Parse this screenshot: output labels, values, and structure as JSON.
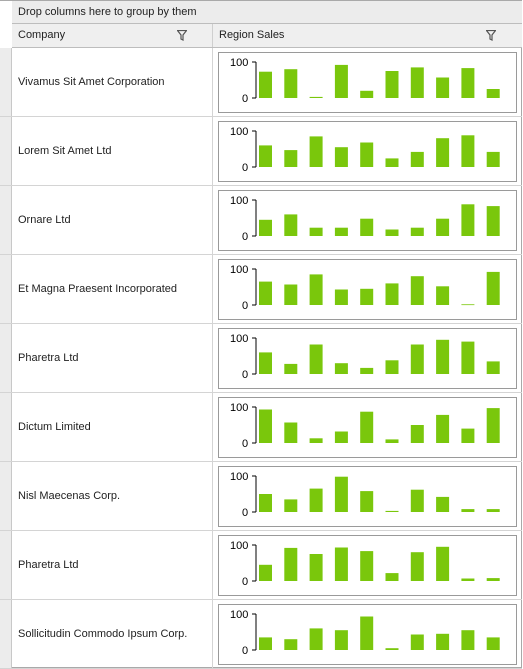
{
  "group_panel": {
    "text": "Drop columns here to group by them"
  },
  "columns": {
    "company": "Company",
    "sales": "Region Sales"
  },
  "icons": {
    "filter": "filter-icon"
  },
  "colors": {
    "bar": "#7ac70c"
  },
  "rows": [
    {
      "company": "Vivamus Sit Amet Corporation",
      "chart_data": {
        "type": "bar",
        "ylim": [
          0,
          100
        ],
        "yticks": [
          "100",
          "0"
        ],
        "values": [
          73,
          80,
          3,
          92,
          20,
          75,
          85,
          57,
          83,
          25
        ]
      }
    },
    {
      "company": "Lorem Sit Amet Ltd",
      "chart_data": {
        "type": "bar",
        "ylim": [
          0,
          100
        ],
        "yticks": [
          "100",
          "0"
        ],
        "values": [
          60,
          47,
          85,
          55,
          68,
          24,
          42,
          80,
          88,
          42
        ]
      }
    },
    {
      "company": "Ornare Ltd",
      "chart_data": {
        "type": "bar",
        "ylim": [
          0,
          100
        ],
        "yticks": [
          "100",
          "0"
        ],
        "values": [
          45,
          60,
          23,
          23,
          48,
          18,
          23,
          48,
          88,
          83
        ]
      }
    },
    {
      "company": "Et Magna Praesent Incorporated",
      "chart_data": {
        "type": "bar",
        "ylim": [
          0,
          100
        ],
        "yticks": [
          "100",
          "0"
        ],
        "values": [
          65,
          57,
          85,
          43,
          45,
          60,
          80,
          52,
          2,
          92
        ]
      }
    },
    {
      "company": "Pharetra Ltd",
      "chart_data": {
        "type": "bar",
        "ylim": [
          0,
          100
        ],
        "yticks": [
          "100",
          "0"
        ],
        "values": [
          60,
          28,
          82,
          30,
          17,
          38,
          82,
          95,
          90,
          35
        ]
      }
    },
    {
      "company": "Dictum Limited",
      "chart_data": {
        "type": "bar",
        "ylim": [
          0,
          100
        ],
        "yticks": [
          "100",
          "0"
        ],
        "values": [
          93,
          57,
          13,
          32,
          87,
          10,
          50,
          78,
          40,
          97
        ]
      }
    },
    {
      "company": "Nisl Maecenas Corp.",
      "chart_data": {
        "type": "bar",
        "ylim": [
          0,
          100
        ],
        "yticks": [
          "100",
          "0"
        ],
        "values": [
          50,
          35,
          65,
          98,
          58,
          3,
          62,
          42,
          8,
          8
        ]
      }
    },
    {
      "company": "Pharetra Ltd",
      "chart_data": {
        "type": "bar",
        "ylim": [
          0,
          100
        ],
        "yticks": [
          "100",
          "0"
        ],
        "values": [
          45,
          92,
          75,
          93,
          83,
          22,
          80,
          95,
          7,
          8
        ]
      }
    },
    {
      "company": "Sollicitudin Commodo Ipsum Corp.",
      "chart_data": {
        "type": "bar",
        "ylim": [
          0,
          100
        ],
        "yticks": [
          "100",
          "0"
        ],
        "values": [
          35,
          30,
          60,
          55,
          93,
          5,
          43,
          45,
          55,
          35
        ]
      }
    }
  ]
}
